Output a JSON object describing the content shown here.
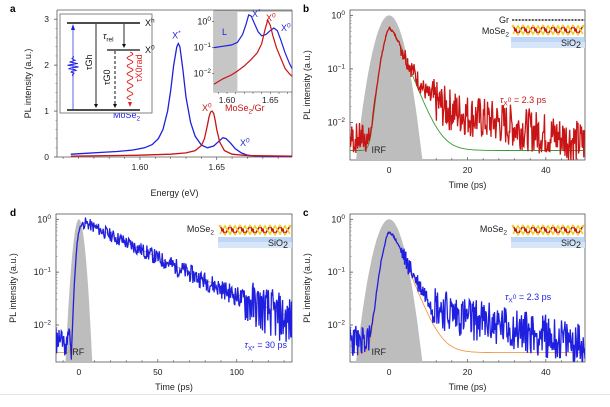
{
  "colors": {
    "blue": "#1f1fe0",
    "red": "#c81414",
    "green": "#3a9a3a",
    "orange": "#f29a4a",
    "irf": "#bdbdbd",
    "inset_shade": "#c6c6c6",
    "sio2": "#a9c8f0"
  },
  "chart_data": [
    {
      "id": "a",
      "panel_letter": "a",
      "type": "line",
      "xlabel": "Energy (eV)",
      "ylabel": "PL intensity (a.u.)",
      "xlim": [
        1.546,
        1.699
      ],
      "ylim": [
        0,
        3.2
      ],
      "xticks": [
        1.6,
        1.65
      ],
      "xtick_labels": [
        "1.60",
        "1.65"
      ],
      "yticks": [
        0,
        1,
        2,
        3
      ],
      "ytick_labels": [
        "0",
        "1",
        "2",
        "3"
      ],
      "series": [
        {
          "name": "MoSe2",
          "color_key": "blue",
          "x": [
            1.555,
            1.565,
            1.575,
            1.585,
            1.595,
            1.603,
            1.608,
            1.612,
            1.615,
            1.618,
            1.62,
            1.622,
            1.624,
            1.625,
            1.626,
            1.628,
            1.63,
            1.633,
            1.636,
            1.64,
            1.644,
            1.648,
            1.651,
            1.654,
            1.656,
            1.659,
            1.662,
            1.666,
            1.67,
            1.675,
            1.685,
            1.699
          ],
          "y": [
            0.06,
            0.08,
            0.1,
            0.12,
            0.15,
            0.2,
            0.27,
            0.4,
            0.6,
            1.0,
            1.45,
            2.0,
            2.4,
            2.47,
            2.4,
            1.9,
            1.3,
            0.75,
            0.45,
            0.26,
            0.2,
            0.24,
            0.33,
            0.42,
            0.4,
            0.3,
            0.18,
            0.09,
            0.04,
            0.02,
            0.01,
            0.01
          ]
        },
        {
          "name": "MoSe2/Gr",
          "color_key": "red",
          "x": [
            1.555,
            1.58,
            1.6,
            1.62,
            1.63,
            1.636,
            1.64,
            1.642,
            1.644,
            1.645,
            1.646,
            1.647,
            1.648,
            1.649,
            1.65,
            1.652,
            1.655,
            1.66,
            1.67,
            1.699
          ],
          "y": [
            0.02,
            0.03,
            0.04,
            0.06,
            0.09,
            0.14,
            0.25,
            0.4,
            0.7,
            0.88,
            0.98,
            1.0,
            0.95,
            0.8,
            0.6,
            0.32,
            0.14,
            0.06,
            0.03,
            0.02
          ]
        }
      ],
      "annotations": [
        {
          "text": "X*",
          "color_key": "blue",
          "x": 1.625,
          "y": 2.58
        },
        {
          "text": "MoSe2",
          "color_key": "blue",
          "x": 1.588,
          "y": 0.72
        },
        {
          "text": "X0",
          "color_key": "red",
          "x": 1.643,
          "y": 1.05
        },
        {
          "text": "MoSe2/Gr",
          "color_key": "red",
          "x": 1.662,
          "y": 0.9
        },
        {
          "text": "X0",
          "color_key": "blue",
          "x": 1.662,
          "y": 0.28
        }
      ],
      "energy_diagram": {
        "levels": [
          "Xh",
          "X0"
        ],
        "labels": {
          "tau_rel": "τrel",
          "tau_G_h": "τGh",
          "tau_G_0": "τG0",
          "tau_rad": "τX0rad"
        }
      },
      "inset": {
        "type": "line",
        "yscale": "log",
        "xlim": [
          1.585,
          1.675
        ],
        "ylim_exp": [
          -2.7,
          0.4
        ],
        "xticks": [
          1.6,
          1.65
        ],
        "xtick_labels": [
          "1.60",
          "1.65"
        ],
        "ytick_exps": [
          0,
          -1,
          -2
        ],
        "shaded_region_label": "L",
        "shaded_x": [
          1.585,
          1.612
        ],
        "series": [
          {
            "name": "MoSe2",
            "color_key": "blue",
            "x": [
              1.585,
              1.595,
              1.605,
              1.612,
              1.618,
              1.622,
              1.625,
              1.628,
              1.632,
              1.636,
              1.64,
              1.645,
              1.65,
              1.654,
              1.658,
              1.662,
              1.667,
              1.672,
              1.675
            ],
            "y_log": [
              -1.0,
              -0.95,
              -0.9,
              -0.8,
              -0.5,
              -0.1,
              0.25,
              0.2,
              -0.1,
              -0.4,
              -0.55,
              -0.5,
              -0.35,
              -0.25,
              -0.35,
              -0.7,
              -1.2,
              -1.6,
              -1.8
            ]
          },
          {
            "name": "MoSe2/Gr",
            "color_key": "red",
            "x": [
              1.585,
              1.595,
              1.605,
              1.612,
              1.62,
              1.628,
              1.635,
              1.64,
              1.644,
              1.647,
              1.65,
              1.653,
              1.657,
              1.662,
              1.667,
              1.672,
              1.675
            ],
            "y_log": [
              -2.4,
              -2.2,
              -2.05,
              -1.9,
              -1.7,
              -1.45,
              -1.2,
              -0.85,
              -0.3,
              0.05,
              -0.15,
              -0.55,
              -1.0,
              -1.4,
              -1.8,
              -2.0,
              -2.1
            ]
          }
        ],
        "annotations": [
          {
            "text": "L",
            "color_key": "blue"
          },
          {
            "text": "X*",
            "color_key": "blue"
          },
          {
            "text": "X0",
            "color_key": "red"
          },
          {
            "text": "X0",
            "color_key": "blue"
          }
        ]
      }
    },
    {
      "id": "b",
      "panel_letter": "b",
      "type": "line",
      "yscale": "log",
      "xlabel": "Time (ps)",
      "ylabel": "PL intensity (a.u.)",
      "xlim": [
        -10,
        50
      ],
      "ylim_exp": [
        -2.7,
        0.1
      ],
      "xticks": [
        0,
        20,
        40
      ],
      "xtick_labels": [
        "0",
        "20",
        "40"
      ],
      "ytick_exps": [
        0,
        -1,
        -2
      ],
      "irf_label": "IRF",
      "data_color_key": "red",
      "fit_color_key": "green",
      "fit_tau_ps": 2.3,
      "fit_floor": 0.003,
      "annotation": {
        "prefix": "τ",
        "sub": "X",
        "sup": "0",
        "text": " = 2.3 ps",
        "color_key": "red"
      },
      "structure_labels": [
        "Gr",
        "MoSe2",
        "SiO2"
      ],
      "noise_seed": 7
    },
    {
      "id": "d",
      "panel_letter": "d",
      "type": "line",
      "yscale": "log",
      "xlabel": "Time (ps)",
      "ylabel": "PL intensity (a.u.)",
      "xlim": [
        -14.5,
        135
      ],
      "ylim_exp": [
        -2.7,
        0.1
      ],
      "xticks": [
        0,
        50,
        100
      ],
      "xtick_labels": [
        "0",
        "50",
        "100"
      ],
      "ytick_exps": [
        0,
        -1,
        -2
      ],
      "irf_label": "IRF",
      "data_color_key": "blue",
      "fit_color_key": "orange",
      "fit_tau_ps": 30,
      "fit_floor": 0.003,
      "annotation": {
        "prefix": "τ",
        "sub": "X*",
        "sup": "",
        "text": " = 30 ps",
        "color_key": "blue"
      },
      "structure_labels": [
        "MoSe2",
        "SiO2"
      ],
      "noise_seed": 11
    },
    {
      "id": "c",
      "panel_letter": "c",
      "type": "line",
      "yscale": "log",
      "xlabel": "Time (ps)",
      "ylabel": "PL intensity (a.u.)",
      "xlim": [
        -10,
        50
      ],
      "ylim_exp": [
        -2.7,
        0.1
      ],
      "xticks": [
        0,
        20,
        40
      ],
      "xtick_labels": [
        "0",
        "20",
        "40"
      ],
      "ytick_exps": [
        0,
        -1,
        -2
      ],
      "irf_label": "IRF",
      "data_color_key": "blue",
      "fit_color_key": "orange",
      "fit_tau_ps": 2.3,
      "fit_floor": 0.003,
      "annotation": {
        "prefix": "τ",
        "sub": "X",
        "sup": "0",
        "text": " = 2.3 ps",
        "color_key": "blue"
      },
      "structure_labels": [
        "MoSe2",
        "SiO2"
      ],
      "noise_seed": 23
    }
  ]
}
